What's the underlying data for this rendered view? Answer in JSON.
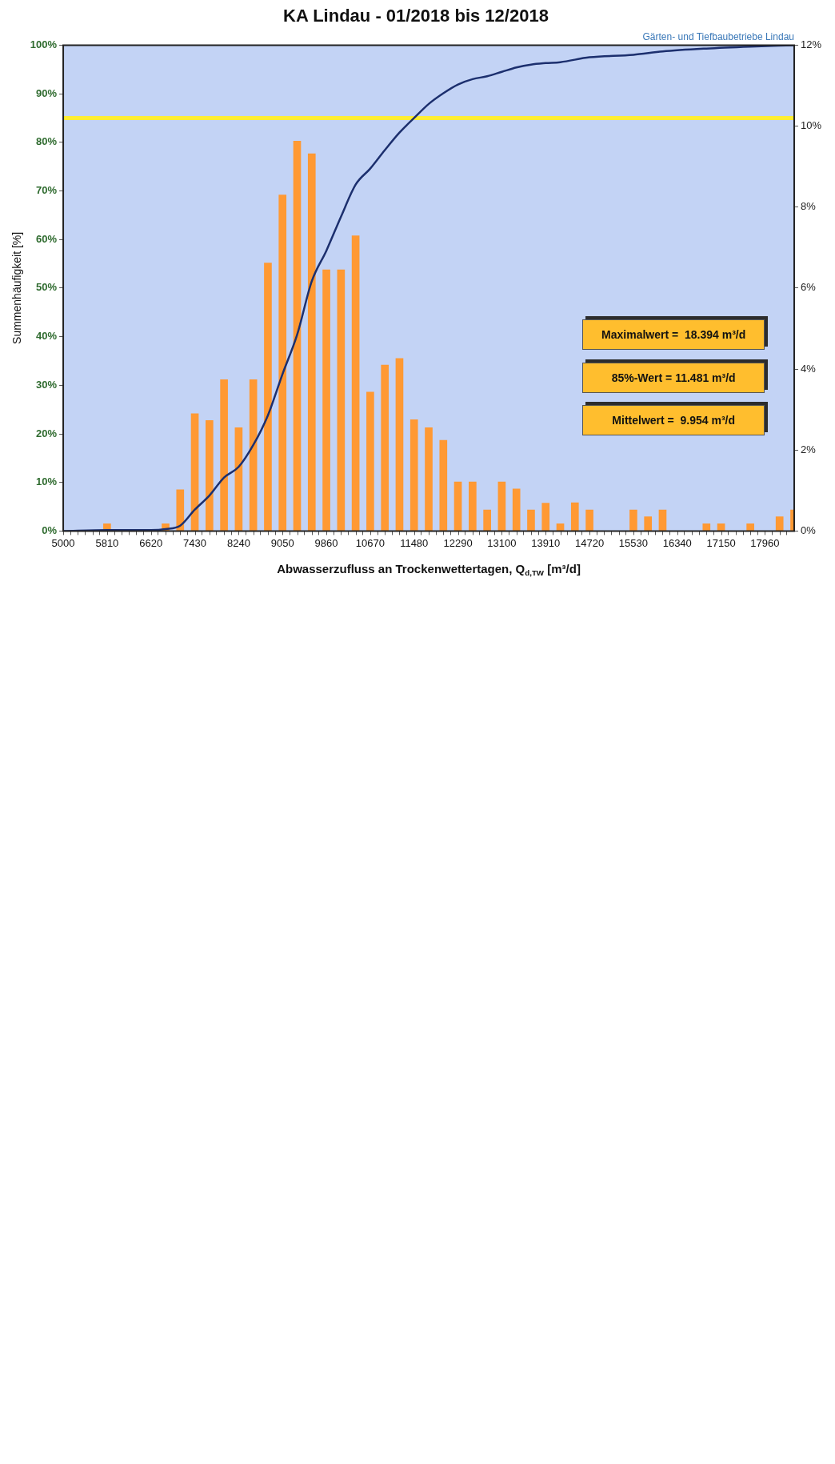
{
  "chart_data": {
    "type": "bar",
    "title": "KA Lindau - 01/2018 bis 12/2018",
    "xlabel": "Abwasserzufluss an Trockenwettertagen, Q$_{d,TW}$ [m³/d]",
    "ylabel": "Summenhäufigkeit [%]",
    "xlim": [
      5000,
      18500
    ],
    "xticks": [
      5000,
      {
        "value": 5270,
        "label": null
      },
      {
        "value": 5540,
        "label": null
      },
      5810,
      {
        "value": 6080,
        "label": null
      },
      {
        "value": 6350,
        "label": null
      },
      6620,
      {
        "value": 6890,
        "label": null
      },
      {
        "value": 7160,
        "label": null
      },
      7430,
      {
        "value": 7700,
        "label": null
      },
      {
        "value": 7970,
        "label": null
      },
      8240,
      {
        "value": 8510,
        "label": null
      },
      {
        "value": 8780,
        "label": null
      },
      9050,
      {
        "value": 9320,
        "label": null
      },
      {
        "value": 9590,
        "label": null
      },
      9860,
      {
        "value": 10130,
        "label": null
      },
      {
        "value": 10400,
        "label": null
      },
      10670,
      {
        "value": 10940,
        "label": null
      },
      {
        "value": 11210,
        "label": null
      },
      11480,
      {
        "value": 11750,
        "label": null
      },
      {
        "value": 12020,
        "label": null
      },
      12290,
      {
        "value": 12560,
        "label": null
      },
      {
        "value": 12830,
        "label": null
      },
      13100,
      {
        "value": 13370,
        "label": null
      },
      {
        "value": 13640,
        "label": null
      },
      13910,
      {
        "value": 14180,
        "label": null
      },
      {
        "value": 14450,
        "label": null
      },
      14720,
      {
        "value": 14990,
        "label": null
      },
      {
        "value": 15260,
        "label": null
      },
      15530,
      {
        "value": 15800,
        "label": null
      },
      {
        "value": 16070,
        "label": null
      },
      16340,
      {
        "value": 16610,
        "label": null
      },
      {
        "value": 16880,
        "label": null
      },
      17150,
      {
        "value": 17420,
        "label": null
      },
      {
        "value": 17690,
        "label": null
      },
      17960,
      {
        "value": 18230,
        "label": null
      }
    ],
    "ylim": [
      0,
      100
    ],
    "yticks": [
      {
        "value": 0,
        "label": "0%"
      },
      {
        "value": 10,
        "label": "10%"
      },
      {
        "value": 20,
        "label": "20%"
      },
      {
        "value": 30,
        "label": "30%"
      },
      {
        "value": 40,
        "label": "40%"
      },
      {
        "value": 50,
        "label": "50%"
      },
      {
        "value": 60,
        "label": "60%"
      },
      {
        "value": 70,
        "label": "70%"
      },
      {
        "value": 80,
        "label": "80%"
      },
      {
        "value": 90,
        "label": "90%"
      },
      {
        "value": 100,
        "label": "100%"
      }
    ],
    "y2lim": [
      0,
      12
    ],
    "y2ticks": [
      {
        "value": 0,
        "label": "0%"
      },
      {
        "value": 2,
        "label": "2%"
      },
      {
        "value": 4,
        "label": "4%"
      },
      {
        "value": 6,
        "label": "6%"
      },
      {
        "value": 8,
        "label": "8%"
      },
      {
        "value": 10,
        "label": "10%"
      },
      {
        "value": 12,
        "label": "12%"
      }
    ],
    "series": [
      {
        "type": "bar",
        "axis": "y2",
        "color": "#ff9933",
        "x": [
          5810,
          6890,
          7160,
          7430,
          7700,
          7970,
          8240,
          8510,
          8780,
          9050,
          9320,
          9590,
          9860,
          10130,
          10400,
          10670,
          10940,
          11210,
          11480,
          11750,
          12020,
          12290,
          12560,
          12830,
          13100,
          13370,
          13640,
          13910,
          14180,
          14450,
          14720,
          15530,
          15800,
          16070,
          16880,
          17150,
          17690,
          18230,
          18500
        ],
        "values": [
          0.18,
          0.18,
          1.02,
          2.9,
          2.73,
          3.74,
          2.55,
          3.74,
          6.62,
          8.3,
          9.63,
          9.32,
          6.45,
          6.45,
          7.29,
          3.43,
          4.1,
          4.26,
          2.75,
          2.55,
          2.24,
          1.21,
          1.21,
          0.52,
          1.21,
          1.04,
          0.52,
          0.69,
          0.18,
          0.7,
          0.52,
          0.52,
          0.35,
          0.52,
          0.18,
          0.18,
          0.18,
          0.35,
          0.52
        ]
      },
      {
        "type": "line",
        "color": "#1c2f6e",
        "x": [
          5000,
          5810,
          6620,
          6890,
          7160,
          7430,
          7700,
          7970,
          8240,
          8510,
          8780,
          9050,
          9320,
          9590,
          9860,
          10130,
          10400,
          10670,
          10940,
          11210,
          11480,
          11750,
          12020,
          12290,
          12560,
          12830,
          13100,
          13370,
          13640,
          13910,
          14180,
          14720,
          15530,
          16070,
          16880,
          17690,
          18500
        ],
        "values": [
          0,
          0.2,
          0.2,
          0.4,
          1.1,
          4.4,
          7.3,
          11,
          13.2,
          17.7,
          23.8,
          32.3,
          40.4,
          51.4,
          57.7,
          64.7,
          71.3,
          74.6,
          78.4,
          82,
          85,
          87.9,
          90.1,
          91.9,
          93,
          93.6,
          94.5,
          95.4,
          96,
          96.3,
          96.5,
          97.5,
          98,
          98.7,
          99.3,
          99.7,
          100
        ]
      }
    ],
    "ref_lines": [
      {
        "axis": "y",
        "value": 85,
        "color": "#ffee33"
      }
    ],
    "annotations": [
      "Gärten- und Tiefbaubetriebe Lindau",
      "Maximalwert =  18.394 m³/d",
      "85%-Wert = 11.481 m³/d",
      "Mittelwert =  9.954 m³/d"
    ],
    "grid": false,
    "legend": false,
    "marker": "none"
  }
}
